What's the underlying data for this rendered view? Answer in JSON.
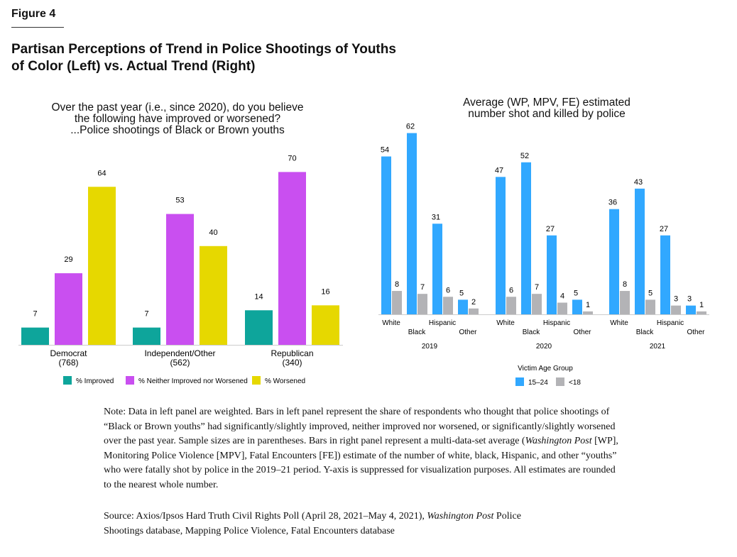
{
  "figure_label": "Figure 4",
  "title": "Partisan Perceptions of Trend in Police Shootings of Youths of Color (Left) vs. Actual Trend (Right)",
  "chart_data": [
    {
      "type": "bar",
      "title_lines": [
        "Over the past year (i.e., since 2020), do you believe",
        "the following have improved or worsened?",
        "...Police shootings of Black or Brown youths"
      ],
      "categories": [
        [
          "Democrat",
          "(768)"
        ],
        [
          "Independent/Other",
          "(562)"
        ],
        [
          "Republican",
          "(340)"
        ]
      ],
      "series": [
        {
          "name": "% Improved",
          "color": "#0ea59b",
          "values": [
            7,
            7,
            14
          ]
        },
        {
          "name": "% Neither Improved nor Worsened",
          "color": "#c94ff0",
          "values": [
            29,
            53,
            70
          ]
        },
        {
          "name": "% Worsened",
          "color": "#e6d800",
          "values": [
            64,
            40,
            16
          ]
        }
      ],
      "ylim": [
        0,
        70
      ],
      "legend": "bottom",
      "grid": false
    },
    {
      "type": "bar",
      "title_lines": [
        "Average (WP, MPV, FE) estimated",
        "number shot and killed by police"
      ],
      "groups": [
        "2019",
        "2020",
        "2021"
      ],
      "categories": [
        "White",
        "Black",
        "Hispanic",
        "Other"
      ],
      "legend_title": "Victim Age Group",
      "series": [
        {
          "name": "15–24",
          "color": "#31a8ff",
          "values": [
            [
              54,
              62,
              31,
              5
            ],
            [
              47,
              52,
              27,
              5
            ],
            [
              36,
              43,
              27,
              3
            ]
          ]
        },
        {
          "name": "<18",
          "color": "#b3b3b6",
          "values": [
            [
              8,
              7,
              6,
              2
            ],
            [
              6,
              7,
              4,
              1
            ],
            [
              8,
              5,
              3,
              1
            ]
          ]
        }
      ],
      "y_axis": "suppressed",
      "legend": "bottom",
      "grid": false
    }
  ],
  "note": "Note: Data in left panel are weighted. Bars in left panel represent the share of respondents who thought that police shootings of “Black or Brown youths” had significantly/slightly improved, neither improved nor worsened, or significantly/slightly worsened over the past year. Sample sizes are in parentheses. Bars in right panel represent a multi-data-set average (",
  "note_wp": "Washington Post",
  "note_rest": " [WP], Monitoring Police Violence [MPV], Fatal Encounters [FE]) estimate of the number of white, black, Hispanic, and other “youths” who were fatally shot by police in the 2019–21 period. Y-axis is suppressed for visualization purposes. All estimates are rounded to the nearest whole number.",
  "source": "Source: Axios/Ipsos Hard Truth Civil Rights Poll (April 28, 2021–May 4, 2021), ",
  "source_wp": "Washington Post",
  "source_rest": " Police Shootings database, Mapping Police Violence, Fatal Encounters database"
}
